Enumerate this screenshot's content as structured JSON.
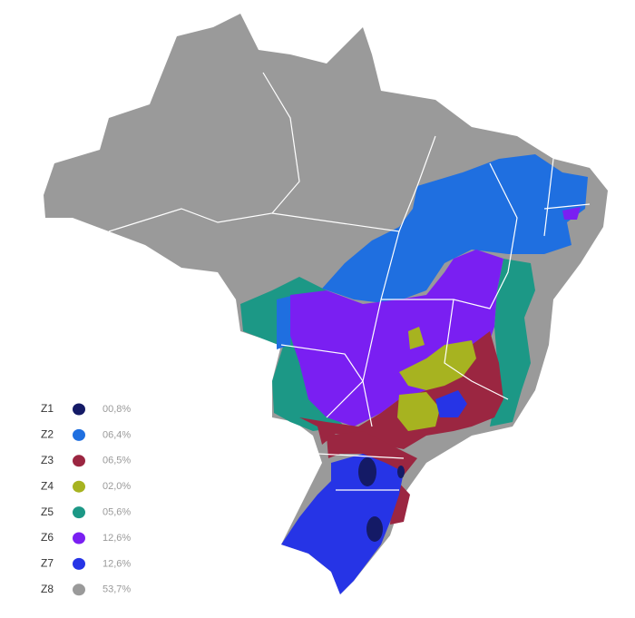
{
  "legend": {
    "items": [
      {
        "zone": "Z1",
        "color": "#141a66",
        "share": "00,8%"
      },
      {
        "zone": "Z2",
        "color": "#1f6fe0",
        "share": "06,4%"
      },
      {
        "zone": "Z3",
        "color": "#9b2641",
        "share": "06,5%"
      },
      {
        "zone": "Z4",
        "color": "#a7b320",
        "share": "02,0%"
      },
      {
        "zone": "Z5",
        "color": "#1c9886",
        "share": "05,6%"
      },
      {
        "zone": "Z6",
        "color": "#7a1ff2",
        "share": "12,6%"
      },
      {
        "zone": "Z7",
        "color": "#2634e6",
        "share": "12,6%"
      },
      {
        "zone": "Z8",
        "color": "#9a9a9a",
        "share": "53,7%"
      }
    ]
  }
}
